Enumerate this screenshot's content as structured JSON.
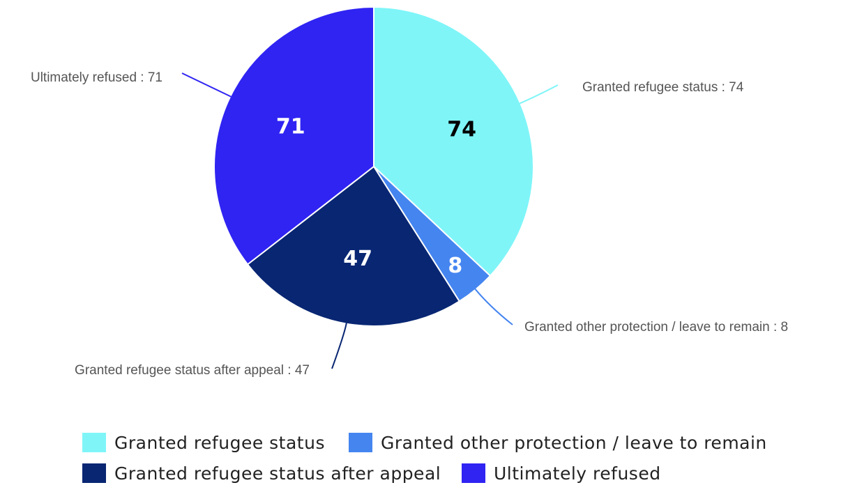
{
  "chart_data": {
    "type": "pie",
    "title": "",
    "slices": [
      {
        "name": "Granted refugee status",
        "value": 74,
        "color": "#7FF5F8",
        "label_color": "#000000",
        "callout": "Granted refugee status : 74"
      },
      {
        "name": "Granted other protection / leave to remain",
        "value": 8,
        "color": "#4585F0",
        "label_color": "#FFFFFF",
        "callout": "Granted other protection / leave to remain : 8"
      },
      {
        "name": "Granted refugee status after appeal",
        "value": 47,
        "color": "#082672",
        "label_color": "#FFFFFF",
        "callout": "Granted refugee status after appeal : 47"
      },
      {
        "name": "Ultimately refused",
        "value": 71,
        "color": "#2F24F2",
        "label_color": "#FFFFFF",
        "callout": "Ultimately refused : 71"
      }
    ],
    "legend_position": "bottom"
  },
  "legend": {
    "rows": [
      [
        {
          "label": "Granted refugee status",
          "color": "#7FF5F8"
        },
        {
          "label": "Granted other protection / leave to remain",
          "color": "#4585F0"
        }
      ],
      [
        {
          "label": "Granted refugee status after appeal",
          "color": "#082672"
        },
        {
          "label": "Ultimately refused",
          "color": "#2F24F2"
        }
      ]
    ]
  }
}
